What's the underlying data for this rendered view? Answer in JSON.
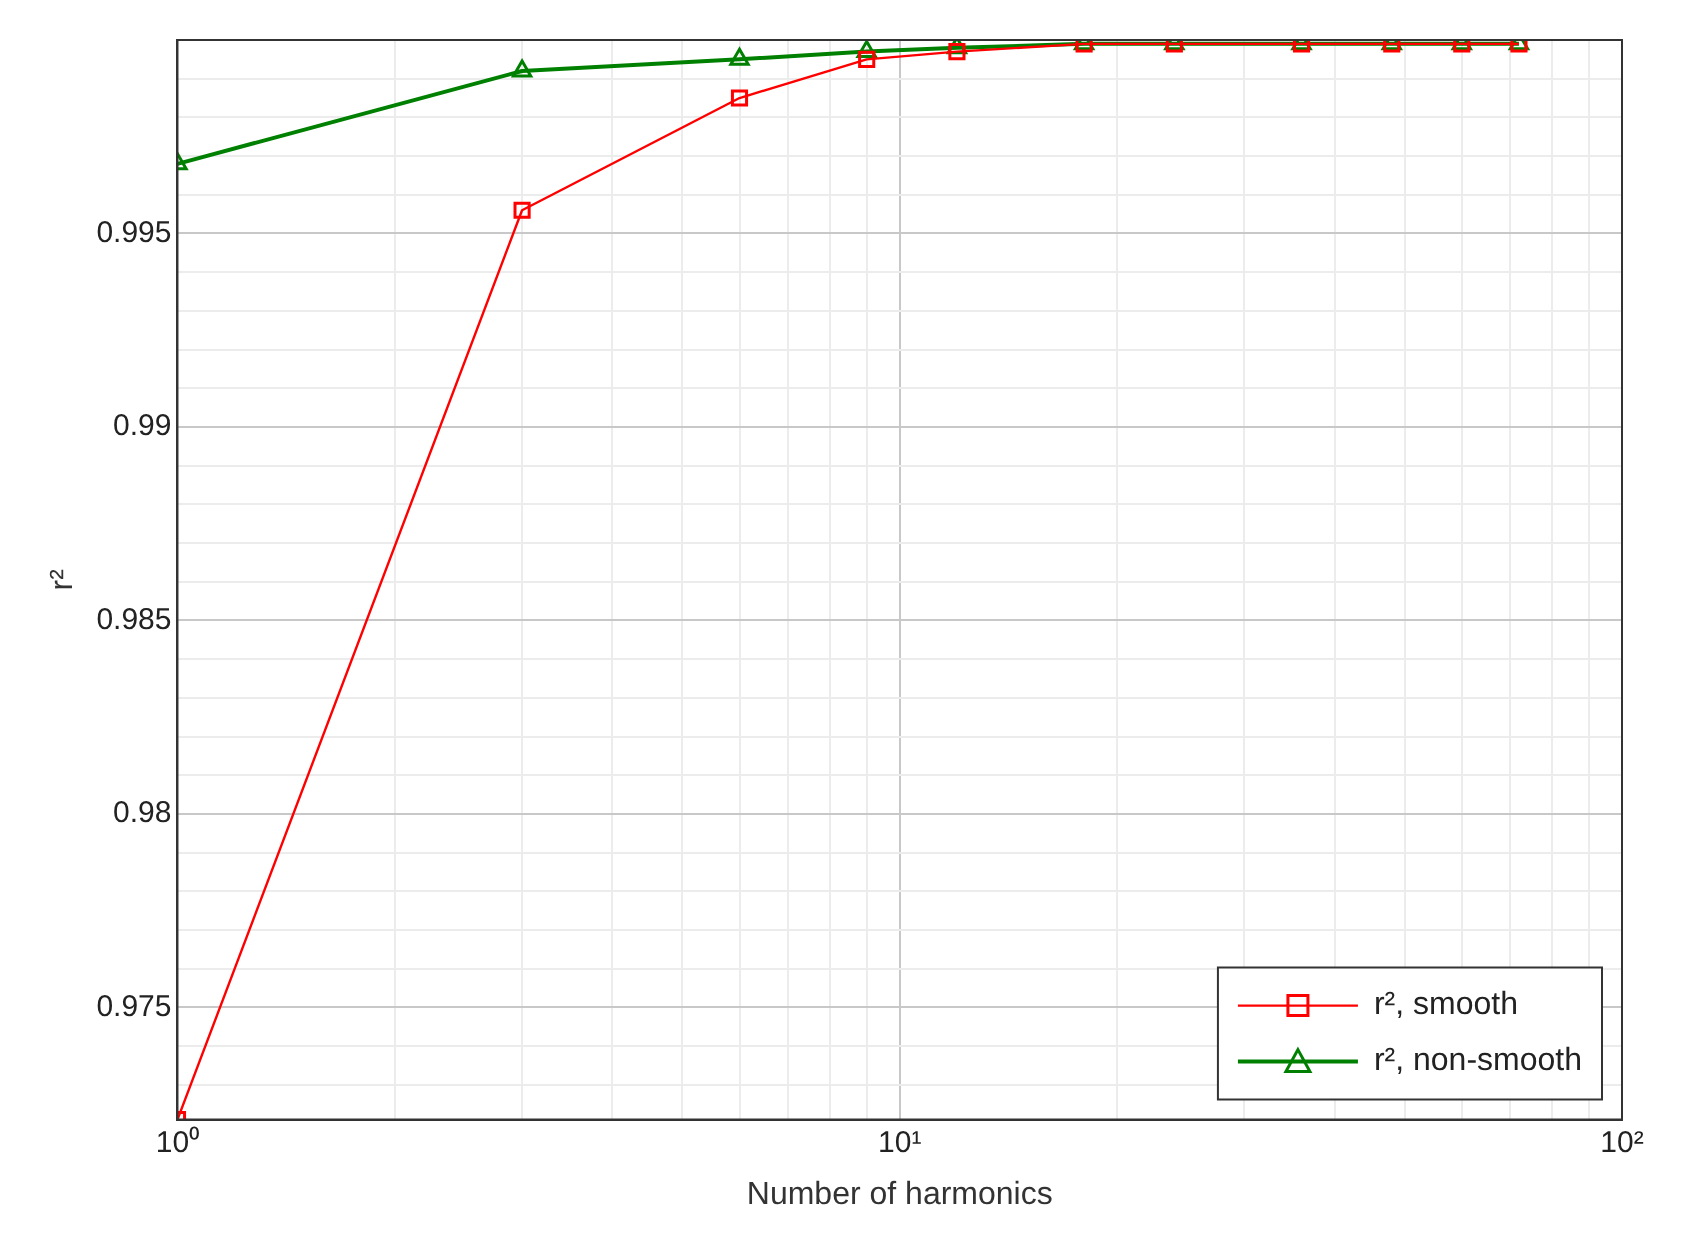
{
  "chart_data": {
    "type": "line",
    "xlabel": "Number of harmonics",
    "ylabel": "r²",
    "x": [
      1,
      3,
      6,
      9,
      12,
      18,
      24,
      36,
      48,
      60,
      72
    ],
    "series": [
      {
        "name": "r², smooth",
        "color": "#ff0000",
        "marker": "square",
        "values": [
          0.9721,
          0.9956,
          0.9985,
          0.9995,
          0.9997,
          0.9999,
          0.9999,
          0.9999,
          0.9999,
          0.9999,
          0.9999
        ]
      },
      {
        "name": "r², non-smooth",
        "color": "#008000",
        "marker": "triangle",
        "values": [
          0.9968,
          0.9992,
          0.9995,
          0.9997,
          0.9998,
          0.9999,
          0.9999,
          0.9999,
          0.9999,
          0.9999,
          0.9999
        ]
      }
    ],
    "log": "x",
    "xlim": [
      1,
      100
    ],
    "xticks": [
      {
        "value": 1,
        "label": "10⁰"
      },
      {
        "value": 2,
        "label": null
      },
      {
        "value": 3,
        "label": null
      },
      {
        "value": 4,
        "label": null
      },
      {
        "value": 5,
        "label": null
      },
      {
        "value": 6,
        "label": null
      },
      {
        "value": 7,
        "label": null
      },
      {
        "value": 8,
        "label": null
      },
      {
        "value": 9,
        "label": null
      },
      {
        "value": 10,
        "label": "10¹"
      },
      {
        "value": 20,
        "label": null
      },
      {
        "value": 30,
        "label": null
      },
      {
        "value": 40,
        "label": null
      },
      {
        "value": 50,
        "label": null
      },
      {
        "value": 60,
        "label": null
      },
      {
        "value": 70,
        "label": null
      },
      {
        "value": 80,
        "label": null
      },
      {
        "value": 90,
        "label": null
      },
      {
        "value": 100,
        "label": "10²"
      }
    ],
    "ylim": [
      0.9721,
      1.0
    ],
    "yticks": [
      {
        "value": 0.973,
        "label": null
      },
      {
        "value": 0.974,
        "label": null
      },
      0.975,
      {
        "value": 0.976,
        "label": null
      },
      {
        "value": 0.977,
        "label": null
      },
      {
        "value": 0.978,
        "label": null
      },
      {
        "value": 0.979,
        "label": null
      },
      0.98,
      {
        "value": 0.981,
        "label": null
      },
      {
        "value": 0.982,
        "label": null
      },
      {
        "value": 0.983,
        "label": null
      },
      {
        "value": 0.984,
        "label": null
      },
      0.985,
      {
        "value": 0.986,
        "label": null
      },
      {
        "value": 0.987,
        "label": null
      },
      {
        "value": 0.988,
        "label": null
      },
      {
        "value": 0.989,
        "label": null
      },
      0.99,
      {
        "value": 0.991,
        "label": null
      },
      {
        "value": 0.992,
        "label": null
      },
      {
        "value": 0.993,
        "label": null
      },
      {
        "value": 0.994,
        "label": null
      },
      0.995,
      {
        "value": 0.996,
        "label": null
      },
      {
        "value": 0.997,
        "label": null
      },
      {
        "value": 0.998,
        "label": null
      },
      {
        "value": 0.999,
        "label": null
      }
    ],
    "grid": true,
    "legend": "bottom right",
    "line_style": "solid"
  }
}
